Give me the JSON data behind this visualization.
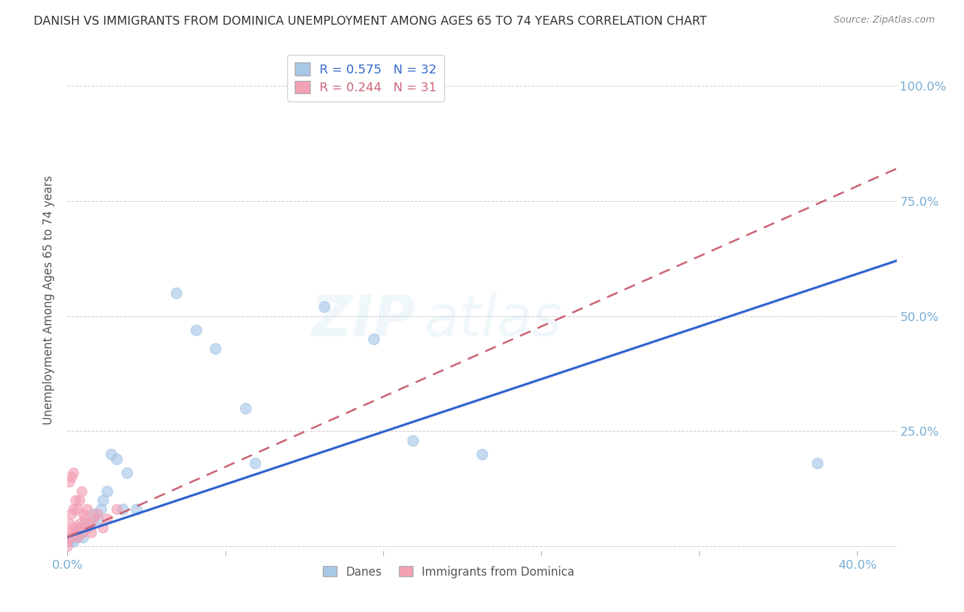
{
  "title": "DANISH VS IMMIGRANTS FROM DOMINICA UNEMPLOYMENT AMONG AGES 65 TO 74 YEARS CORRELATION CHART",
  "source": "Source: ZipAtlas.com",
  "ylabel": "Unemployment Among Ages 65 to 74 years",
  "xlim": [
    0.0,
    0.42
  ],
  "ylim": [
    -0.01,
    1.08
  ],
  "danes_x": [
    0.001,
    0.002,
    0.003,
    0.004,
    0.005,
    0.006,
    0.007,
    0.008,
    0.009,
    0.01,
    0.012,
    0.013,
    0.015,
    0.017,
    0.018,
    0.02,
    0.022,
    0.025,
    0.028,
    0.03,
    0.035,
    0.055,
    0.065,
    0.075,
    0.09,
    0.13,
    0.155,
    0.175,
    0.38,
    0.21,
    0.095,
    0.16
  ],
  "danes_y": [
    0.01,
    0.02,
    0.01,
    0.03,
    0.02,
    0.04,
    0.03,
    0.02,
    0.05,
    0.04,
    0.05,
    0.07,
    0.06,
    0.08,
    0.1,
    0.12,
    0.2,
    0.19,
    0.08,
    0.16,
    0.08,
    0.55,
    0.47,
    0.43,
    0.3,
    0.52,
    0.45,
    0.23,
    0.18,
    0.2,
    0.18,
    1.0
  ],
  "immigrants_x": [
    0.0,
    0.0,
    0.001,
    0.001,
    0.001,
    0.002,
    0.002,
    0.002,
    0.003,
    0.003,
    0.003,
    0.004,
    0.004,
    0.005,
    0.005,
    0.006,
    0.006,
    0.007,
    0.007,
    0.008,
    0.008,
    0.009,
    0.01,
    0.01,
    0.011,
    0.012,
    0.013,
    0.015,
    0.018,
    0.02,
    0.025
  ],
  "immigrants_y": [
    0.0,
    0.01,
    0.02,
    0.05,
    0.14,
    0.03,
    0.07,
    0.15,
    0.04,
    0.08,
    0.16,
    0.03,
    0.1,
    0.02,
    0.08,
    0.05,
    0.1,
    0.04,
    0.12,
    0.03,
    0.07,
    0.06,
    0.04,
    0.08,
    0.05,
    0.03,
    0.06,
    0.07,
    0.04,
    0.06,
    0.08
  ],
  "danes_color": "#A8C8E8",
  "immigrants_color": "#F4A0B5",
  "danes_line_color": "#3366CC",
  "immigrants_line_color": "#CC6677",
  "danes_label": "Danes",
  "immigrants_label": "Immigrants from Dominica",
  "legend_r_danes": "R = 0.575",
  "legend_n_danes": "N = 32",
  "legend_r_immigrants": "R = 0.244",
  "legend_n_immigrants": "N = 31",
  "watermark": "ZIPatlas",
  "background_color": "#FFFFFF",
  "grid_color": "#CCCCCC",
  "title_color": "#333333",
  "tick_label_color": "#7BAFD4",
  "right_tick_color": "#7BAFD4",
  "source_color": "#888888"
}
